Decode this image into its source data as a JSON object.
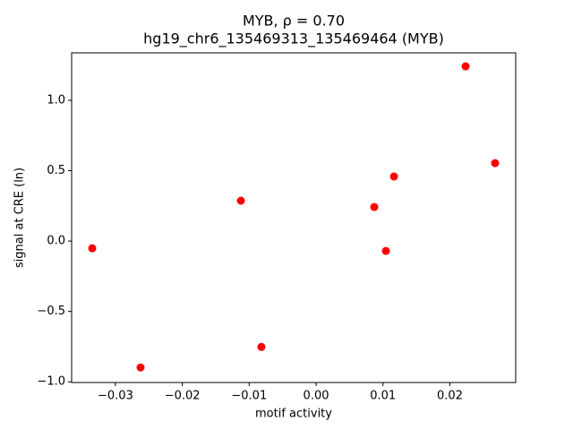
{
  "chart_data": {
    "type": "scatter",
    "title": "MYB, ρ = 0.70",
    "subtitle": "hg19_chr6_135469313_135469464 (MYB)",
    "x_label": "motif activity",
    "y_label": "signal at CRE (ln)",
    "color": "#ff0000",
    "x": [
      0.02236,
      0.02677,
      0.01165,
      0.0087,
      0.01044,
      -0.01124,
      -0.03347,
      -0.00817,
      -0.02624
    ],
    "values": [
      1.242,
      0.554,
      0.459,
      0.242,
      -0.07,
      0.287,
      -0.051,
      -0.752,
      -0.898
    ],
    "xlim": [
      -0.03655,
      0.02985
    ],
    "ylim": [
      -1.005,
      1.3376
    ],
    "xticks": [
      {
        "value": -0.03,
        "label": "−0.03"
      },
      {
        "value": -0.02,
        "label": "−0.02"
      },
      {
        "value": -0.01,
        "label": "−0.01"
      },
      {
        "value": 0,
        "label": "0.00"
      },
      0.01,
      0.02
    ],
    "yticks": [
      {
        "value": -1,
        "label": "−1.0"
      },
      {
        "value": -0.5,
        "label": "−0.5"
      },
      {
        "value": 0,
        "label": "0.0"
      },
      0.5,
      {
        "value": 1,
        "label": "1.0"
      }
    ],
    "grid": false
  }
}
